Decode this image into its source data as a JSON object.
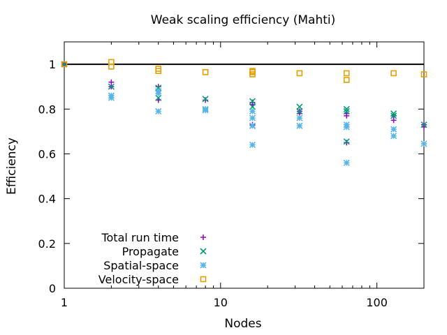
{
  "chart_data": {
    "type": "scatter",
    "title": "Weak scaling efficiency (Mahti)",
    "xlabel": "Nodes",
    "ylabel": "Efficiency",
    "xscale": "log",
    "xlim": [
      1,
      200
    ],
    "ylim": [
      0,
      1.1
    ],
    "xticks": [
      {
        "value": 1,
        "label": "1"
      },
      {
        "value": 10,
        "label": "10"
      },
      {
        "value": 100,
        "label": "100"
      }
    ],
    "yticks": [
      {
        "value": 0,
        "label": "0"
      },
      {
        "value": 0.2,
        "label": "0.2"
      },
      {
        "value": 0.4,
        "label": "0.4"
      },
      {
        "value": 0.6,
        "label": "0.6"
      },
      {
        "value": 0.8,
        "label": "0.8"
      },
      {
        "value": 1,
        "label": "1"
      }
    ],
    "reference_line": {
      "y": 1,
      "color": "#000000"
    },
    "grid": false,
    "legend_position": "bottom-left",
    "series": [
      {
        "name": "Total run time",
        "marker": "plus",
        "color": "#9400d3",
        "points": [
          [
            1,
            1.0
          ],
          [
            2,
            0.92
          ],
          [
            2,
            0.9
          ],
          [
            4,
            0.84
          ],
          [
            4,
            0.9
          ],
          [
            8,
            0.84
          ],
          [
            16,
            0.83
          ],
          [
            16,
            0.82
          ],
          [
            16,
            0.73
          ],
          [
            32,
            0.79
          ],
          [
            32,
            0.78
          ],
          [
            64,
            0.78
          ],
          [
            64,
            0.77
          ],
          [
            64,
            0.65
          ],
          [
            128,
            0.77
          ],
          [
            128,
            0.75
          ],
          [
            200,
            0.73
          ],
          [
            200,
            0.72
          ]
        ]
      },
      {
        "name": "Propagate",
        "marker": "cross",
        "color": "#009e73",
        "points": [
          [
            1,
            1.0
          ],
          [
            2,
            0.9
          ],
          [
            4,
            0.895
          ],
          [
            4,
            0.85
          ],
          [
            8,
            0.845
          ],
          [
            16,
            0.835
          ],
          [
            16,
            0.81
          ],
          [
            16,
            0.725
          ],
          [
            32,
            0.81
          ],
          [
            32,
            0.79
          ],
          [
            64,
            0.8
          ],
          [
            64,
            0.79
          ],
          [
            64,
            0.655
          ],
          [
            128,
            0.78
          ],
          [
            128,
            0.77
          ],
          [
            200,
            0.73
          ]
        ]
      },
      {
        "name": "Spatial-space",
        "marker": "star",
        "color": "#56b4e9",
        "points": [
          [
            2,
            0.86
          ],
          [
            2,
            0.85
          ],
          [
            4,
            0.88
          ],
          [
            4,
            0.87
          ],
          [
            4,
            0.79
          ],
          [
            8,
            0.8
          ],
          [
            8,
            0.795
          ],
          [
            16,
            0.79
          ],
          [
            16,
            0.76
          ],
          [
            16,
            0.725
          ],
          [
            16,
            0.64
          ],
          [
            32,
            0.76
          ],
          [
            32,
            0.725
          ],
          [
            64,
            0.73
          ],
          [
            64,
            0.72
          ],
          [
            64,
            0.56
          ],
          [
            128,
            0.71
          ],
          [
            128,
            0.68
          ],
          [
            200,
            0.645
          ]
        ]
      },
      {
        "name": "Velocity-space",
        "marker": "square",
        "color": "#e69f00",
        "points": [
          [
            1,
            1.0
          ],
          [
            2,
            1.01
          ],
          [
            2,
            0.99
          ],
          [
            4,
            0.98
          ],
          [
            4,
            0.97
          ],
          [
            8,
            0.965
          ],
          [
            16,
            0.97
          ],
          [
            16,
            0.965
          ],
          [
            16,
            0.955
          ],
          [
            32,
            0.96
          ],
          [
            64,
            0.96
          ],
          [
            64,
            0.93
          ],
          [
            128,
            0.96
          ],
          [
            200,
            0.955
          ]
        ]
      }
    ]
  }
}
